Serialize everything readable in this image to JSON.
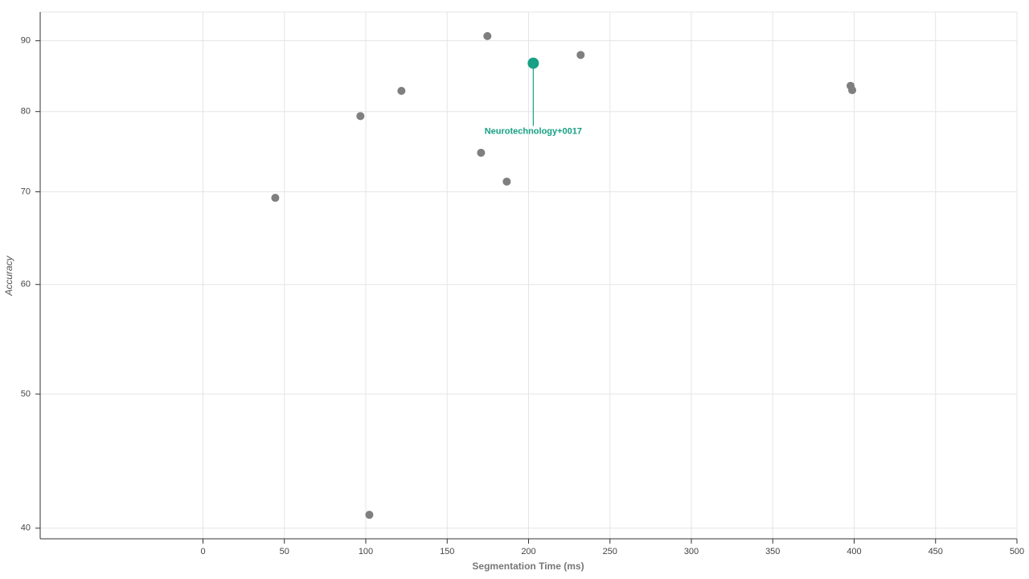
{
  "chart_data": {
    "type": "scatter",
    "x_label": "Segmentation Time (ms)",
    "y_label": "Accuracy",
    "x": [
      44.4,
      96.7,
      121.9,
      102.2,
      170.8,
      174.7,
      186.6,
      232.0,
      397.8,
      398.8
    ],
    "values": [
      69.3,
      79.4,
      82.8,
      40.9,
      74.7,
      90.7,
      71.2,
      87.9,
      83.5,
      82.9
    ],
    "color": "#7f7f7f",
    "annotation": {
      "text": "Neurotechnology+0017",
      "x": 202.9,
      "y": 86.7,
      "color": "#16a085"
    },
    "xlim": [
      -100,
      500
    ],
    "xticks": [
      0,
      50,
      100,
      150,
      200,
      250,
      300,
      350,
      400,
      450,
      500
    ],
    "ylim": [
      39.3,
      94.4
    ],
    "yticks": [
      40,
      50,
      60,
      70,
      80,
      90
    ],
    "y_log": true,
    "grid": true
  }
}
